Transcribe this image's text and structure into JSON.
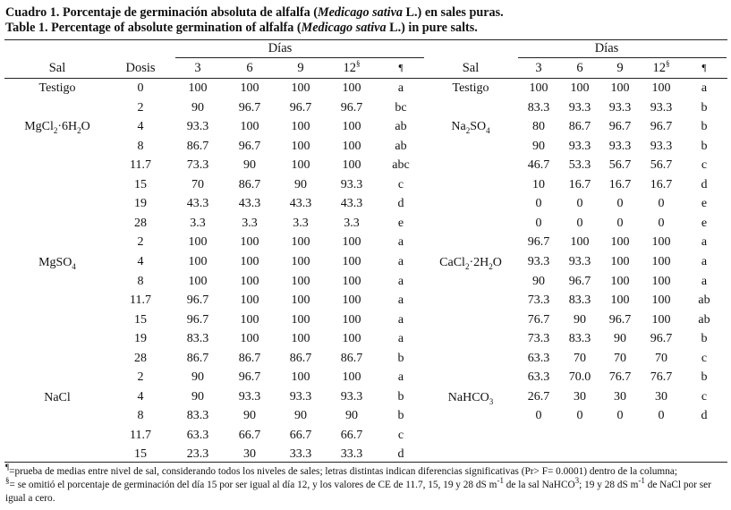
{
  "title_es": {
    "pre": "Cuadro 1. Porcentaje de germinación absoluta de alfalfa (",
    "species": "Medicago sativa",
    "post": " L.) en sales puras."
  },
  "title_en": {
    "pre": "Table 1. Percentage of absolute germination of alfalfa (",
    "species": "Medicago sativa",
    "post": " L.) in pure salts."
  },
  "headers": {
    "dias": "Días",
    "sal": "Sal",
    "dosis": "Dosis",
    "d3": "3",
    "d6": "6",
    "d9": "9",
    "d12": "12",
    "d12_sup": "§",
    "sig": "¶"
  },
  "left_salts": {
    "testigo": "Testigo",
    "mgcl2": {
      "a": "MgCl",
      "s1": "2",
      "b": "·6H",
      "s2": "2",
      "c": "O"
    },
    "mgso4": {
      "a": "MgSO",
      "s1": "4"
    },
    "nacl": "NaCl"
  },
  "right_salts": {
    "testigo": "Testigo",
    "na2so4": {
      "a": "Na",
      "s1": "2",
      "b": "SO",
      "s2": "4"
    },
    "cacl2": {
      "a": "CaCl",
      "s1": "2",
      "b": "·2H",
      "s2": "2",
      "c": "O"
    },
    "nahco3": {
      "a": "NaHCO",
      "s1": "3"
    }
  },
  "left_rows": [
    [
      "0",
      "100",
      "100",
      "100",
      "100",
      "a"
    ],
    [
      "2",
      "90",
      "96.7",
      "96.7",
      "96.7",
      "bc"
    ],
    [
      "4",
      "93.3",
      "100",
      "100",
      "100",
      "ab"
    ],
    [
      "8",
      "86.7",
      "96.7",
      "100",
      "100",
      "ab"
    ],
    [
      "11.7",
      "73.3",
      "90",
      "100",
      "100",
      "abc"
    ],
    [
      "15",
      "70",
      "86.7",
      "90",
      "93.3",
      "c"
    ],
    [
      "19",
      "43.3",
      "43.3",
      "43.3",
      "43.3",
      "d"
    ],
    [
      "28",
      "3.3",
      "3.3",
      "3.3",
      "3.3",
      "e"
    ],
    [
      "2",
      "100",
      "100",
      "100",
      "100",
      "a"
    ],
    [
      "4",
      "100",
      "100",
      "100",
      "100",
      "a"
    ],
    [
      "8",
      "100",
      "100",
      "100",
      "100",
      "a"
    ],
    [
      "11.7",
      "96.7",
      "100",
      "100",
      "100",
      "a"
    ],
    [
      "15",
      "96.7",
      "100",
      "100",
      "100",
      "a"
    ],
    [
      "19",
      "83.3",
      "100",
      "100",
      "100",
      "a"
    ],
    [
      "28",
      "86.7",
      "86.7",
      "86.7",
      "86.7",
      "b"
    ],
    [
      "2",
      "90",
      "96.7",
      "100",
      "100",
      "a"
    ],
    [
      "4",
      "90",
      "93.3",
      "93.3",
      "93.3",
      "b"
    ],
    [
      "8",
      "83.3",
      "90",
      "90",
      "90",
      "b"
    ],
    [
      "11.7",
      "63.3",
      "66.7",
      "66.7",
      "66.7",
      "c"
    ],
    [
      "15",
      "23.3",
      "30",
      "33.3",
      "33.3",
      "d"
    ]
  ],
  "right_rows": [
    [
      "100",
      "100",
      "100",
      "100",
      "a"
    ],
    [
      "83.3",
      "93.3",
      "93.3",
      "93.3",
      "b"
    ],
    [
      "80",
      "86.7",
      "96.7",
      "96.7",
      "b"
    ],
    [
      "90",
      "93.3",
      "93.3",
      "93.3",
      "b"
    ],
    [
      "46.7",
      "53.3",
      "56.7",
      "56.7",
      "c"
    ],
    [
      "10",
      "16.7",
      "16.7",
      "16.7",
      "d"
    ],
    [
      "0",
      "0",
      "0",
      "0",
      "e"
    ],
    [
      "0",
      "0",
      "0",
      "0",
      "e"
    ],
    [
      "96.7",
      "100",
      "100",
      "100",
      "a"
    ],
    [
      "93.3",
      "93.3",
      "100",
      "100",
      "a"
    ],
    [
      "90",
      "96.7",
      "100",
      "100",
      "a"
    ],
    [
      "73.3",
      "83.3",
      "100",
      "100",
      "ab"
    ],
    [
      "76.7",
      "90",
      "96.7",
      "100",
      "ab"
    ],
    [
      "73.3",
      "83.3",
      "90",
      "96.7",
      "b"
    ],
    [
      "63.3",
      "70",
      "70",
      "70",
      "c"
    ],
    [
      "63.3",
      "70.0",
      "76.7",
      "76.7",
      "b"
    ],
    [
      "26.7",
      "30",
      "30",
      "30",
      "c"
    ],
    [
      "0",
      "0",
      "0",
      "0",
      "d"
    ]
  ],
  "notes": {
    "n1": {
      "mark": "¶",
      "text": "=prueba de medias entre nivel de sal, considerando todos los niveles de sales; letras distintas indican diferencias significativas (Pr> F= 0.0001) dentro de la columna;"
    },
    "n2": {
      "mark": "§",
      "t1": "= se omitió el porcentaje de germinación del día 15 por ser igual al día 12, y los valores de CE de 11.7, 15, 19 y 28 dS m",
      "e1": "-1",
      "t2": " de la sal NaHCO",
      "e2": "3",
      "t3": "; 19 y 28 dS m",
      "e3": "-1",
      "t4": " de NaCl por ser igual a cero."
    }
  }
}
